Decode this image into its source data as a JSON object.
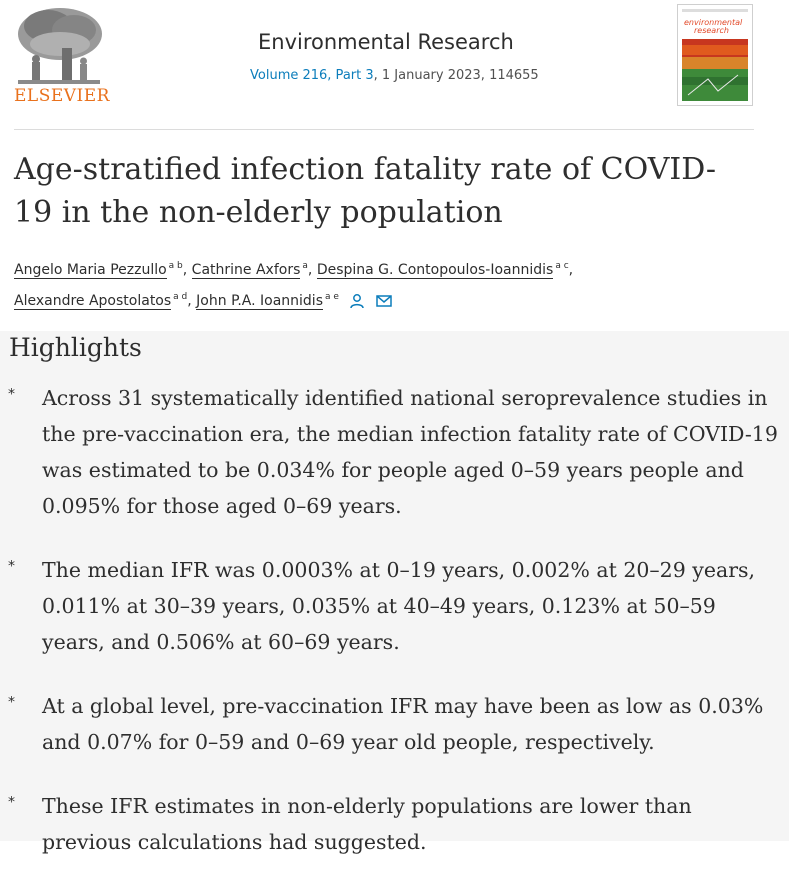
{
  "publisher": {
    "name": "ELSEVIER",
    "logo_icon": "elsevier-tree-logo-icon",
    "accent_color": "#e9711c"
  },
  "journal": {
    "title": "Environmental Research",
    "volume_part": "Volume 216, Part 3",
    "date_article": ", 1 January 2023, 114655",
    "cover_text_1": "environmental",
    "cover_text_2": "research",
    "link_color": "#0c7dbb"
  },
  "article": {
    "title": "Age-stratified infection fatality rate of COVID-19 in the non-elderly population",
    "authors": [
      {
        "name": "Angelo Maria Pezzullo",
        "affil": "a b"
      },
      {
        "name": "Cathrine Axfors",
        "affil": "a"
      },
      {
        "name": "Despina G. Contopoulos-Ioannidis",
        "affil": "a c"
      },
      {
        "name": "Alexandre Apostolatos",
        "affil": "a d"
      },
      {
        "name": "John P.A. Ioannidis",
        "affil": "a e"
      }
    ],
    "corresponding_icons": [
      "person-icon",
      "envelope-icon"
    ]
  },
  "highlights": {
    "heading": "Highlights",
    "bullet": "⁎",
    "items": [
      "Across 31 systematically identified national seroprevalence studies in the pre-vaccination era, the median infection fatality rate of COVID-19 was estimated to be 0.034% for people aged 0–59 years people and 0.095% for those aged 0–69 years.",
      "The median IFR was 0.0003% at 0–19 years, 0.002% at 20–29 years, 0.011% at 30–39 years, 0.035% at 40–49 years, 0.123% at 50–59 years, and 0.506% at 60–69 years.",
      "At a global level, pre-vaccination IFR may have been as low as 0.03% and 0.07% for 0–59 and 0–69 year old people, respectively.",
      "These IFR estimates in non-elderly populations are lower than previous calculations had suggested."
    ]
  }
}
